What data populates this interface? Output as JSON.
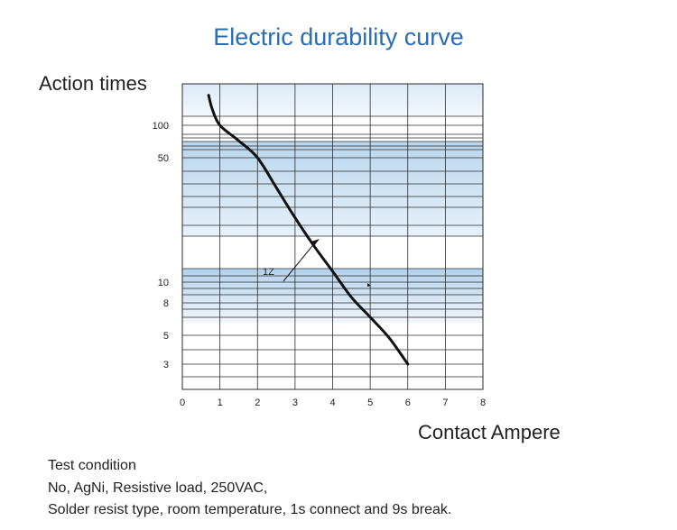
{
  "chart_data": {
    "type": "line",
    "title": "Electric durability curve",
    "ylabel": "Action times",
    "xlabel": "Contact Ampere",
    "x_ticks": [
      0,
      1,
      2,
      3,
      4,
      5,
      6,
      7,
      8
    ],
    "y_ticks": [
      100,
      50,
      10,
      8,
      5,
      3
    ],
    "xlim": [
      0,
      8
    ],
    "grid": true,
    "series": [
      {
        "name": "1Z",
        "points": [
          [
            0.7,
            190
          ],
          [
            0.8,
            140
          ],
          [
            1.0,
            100
          ],
          [
            1.5,
            72
          ],
          [
            2.0,
            50
          ],
          [
            2.5,
            34
          ],
          [
            3.0,
            23
          ],
          [
            3.5,
            16
          ],
          [
            4.0,
            11.5
          ],
          [
            4.5,
            8.5
          ],
          [
            5.0,
            6.5
          ],
          [
            5.5,
            4.8
          ],
          [
            6.0,
            3.0
          ]
        ]
      }
    ]
  },
  "test_condition": {
    "heading": "Test condition",
    "line1": "No, AgNi, Resistive load, 250VAC,",
    "line2": "Solder resist type, room temperature, 1s connect and 9s break."
  }
}
